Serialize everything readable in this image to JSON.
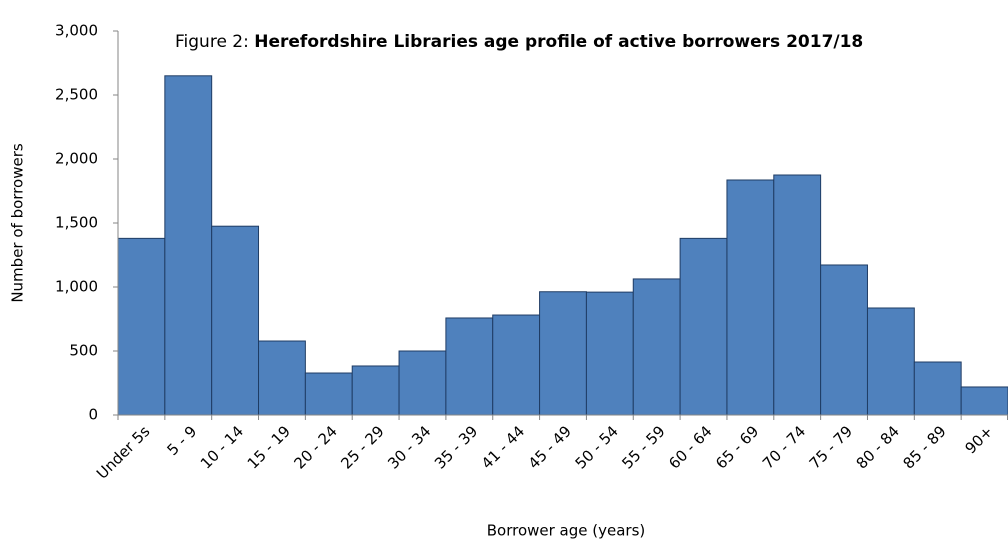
{
  "chart_data": {
    "type": "bar",
    "title": [
      "Figure 2:",
      "Herefordshire Libraries age profile of active borrowers 2017/18"
    ],
    "x_label": "Borrower age (years)",
    "y_label": "Number of borrowers",
    "categories": [
      "Under 5s",
      "5 - 9",
      "10 - 14",
      "15 - 19",
      "20 - 24",
      "25 - 29",
      "30 - 34",
      "35 - 39",
      "41 - 44",
      "45 - 49",
      "50 - 54",
      "55 - 59",
      "60 - 64",
      "65 - 69",
      "70 - 74",
      "75 - 79",
      "80 - 84",
      "85 - 89",
      "90+"
    ],
    "values": [
      1380,
      2650,
      1475,
      578,
      328,
      383,
      500,
      758,
      781,
      963,
      960,
      1063,
      1380,
      1836,
      1875,
      1172,
      836,
      414,
      219
    ],
    "color": "#4f81bd",
    "ylim": [
      0,
      3000
    ],
    "yticks": [
      0,
      500,
      {
        "value": 1000,
        "label": "1,000"
      },
      {
        "value": 1500,
        "label": "1,500"
      },
      {
        "value": 2000,
        "label": "2,000"
      },
      {
        "value": 2500,
        "label": "2,500"
      },
      {
        "value": 3000,
        "label": "3,000"
      }
    ],
    "grid": false
  }
}
